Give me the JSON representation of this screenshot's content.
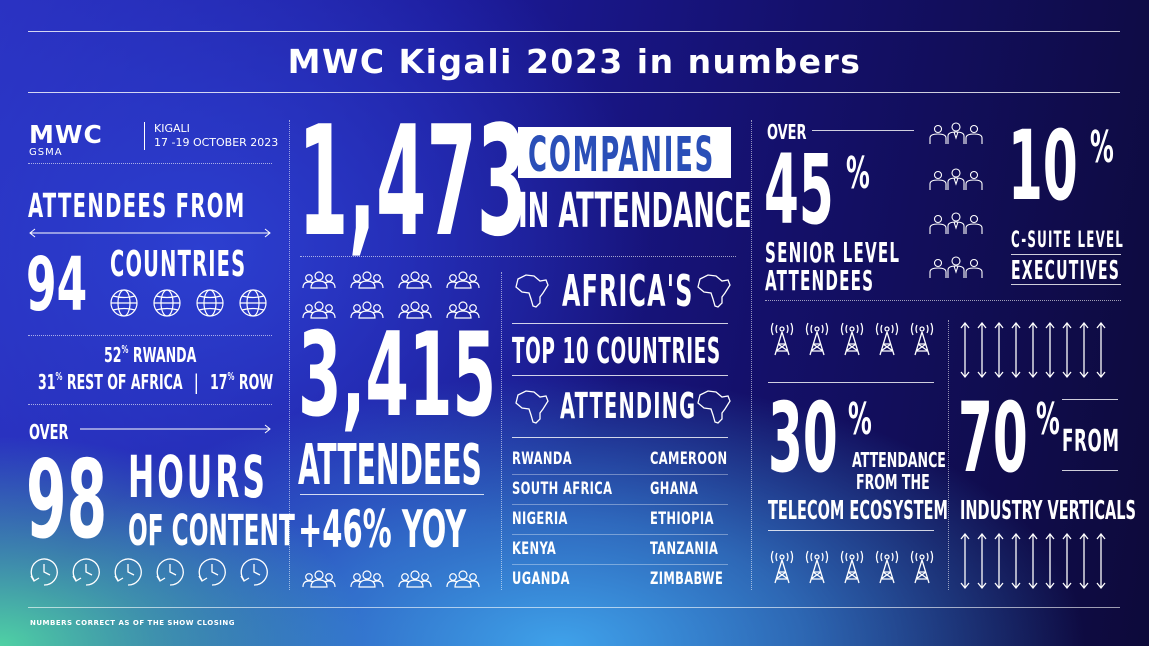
{
  "title": "MWC Kigali 2023 in numbers",
  "logo": {
    "brand": "MWC",
    "sub": "GSMA"
  },
  "event": {
    "city": "KIGALI",
    "dates": "17 -19 OCTOBER 2023"
  },
  "attendees_from": {
    "heading": "ATTENDEES FROM",
    "count": "94",
    "label": "COUNTRIES",
    "rwanda_pct": "52",
    "rwanda_label": "RWANDA",
    "africa_pct": "31",
    "africa_label": "REST OF AFRICA",
    "row_pct": "17",
    "row_label": "ROW",
    "pct_sign": "%"
  },
  "content_hours": {
    "over": "OVER",
    "count": "98",
    "label1": "HOURS",
    "label2": "OF CONTENT"
  },
  "companies": {
    "count": "1,473",
    "label1": "COMPANIES",
    "label2": "IN ATTENDANCE"
  },
  "attendees": {
    "count": "3,415",
    "label": "ATTENDEES",
    "growth": "+46% YOY"
  },
  "africa": {
    "line1": "AFRICA'S",
    "line2": "TOP 10 COUNTRIES",
    "line3": "ATTENDING",
    "countries_left": [
      "RWANDA",
      "SOUTH AFRICA",
      "NIGERIA",
      "KENYA",
      "UGANDA"
    ],
    "countries_right": [
      "CAMEROON",
      "GHANA",
      "ETHIOPIA",
      "TANZANIA",
      "ZIMBABWE"
    ]
  },
  "senior": {
    "over": "OVER",
    "pct": "45",
    "sign": "%",
    "label1": "SENIOR LEVEL",
    "label2": "ATTENDEES"
  },
  "csuite": {
    "pct": "10",
    "sign": "%",
    "label1": "C-SUITE LEVEL",
    "label2": "EXECUTIVES"
  },
  "telecom": {
    "pct": "30",
    "sign": "%",
    "label1": "ATTENDANCE",
    "label2": "FROM THE",
    "label3": "TELECOM ECOSYSTEM"
  },
  "verticals": {
    "pct": "70",
    "sign": "%",
    "from": "FROM",
    "label": "INDUSTRY VERTICALS"
  },
  "footnote": "NUMBERS CORRECT AS OF THE SHOW CLOSING",
  "colors": {
    "accent_box": "#ffffff",
    "accent_text": "#2a4fb8"
  }
}
